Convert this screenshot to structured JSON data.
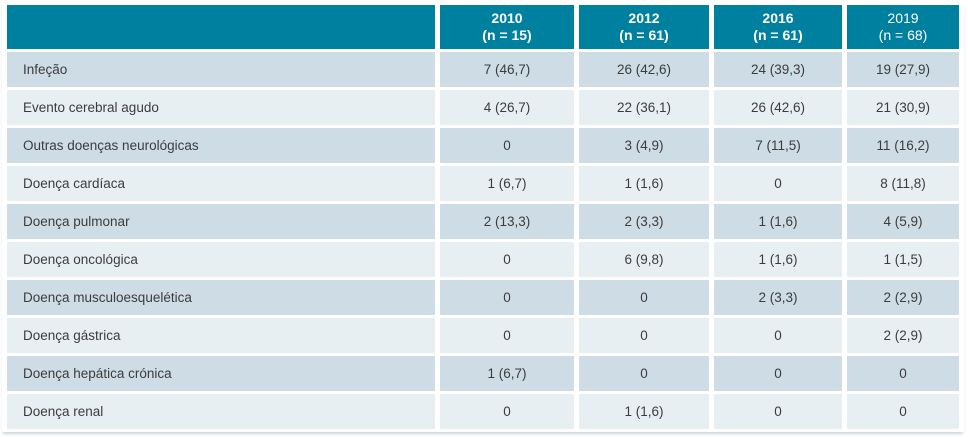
{
  "theme": {
    "header-bg": "#00809F",
    "header-text": "#FFFFFF",
    "row-dark": "#CEDCE6",
    "row-light": "#E8EFF3",
    "body-text": "#3C3C3C"
  },
  "table": {
    "columns": [
      {
        "year": "2010",
        "n": "(n = 15)"
      },
      {
        "year": "2012",
        "n": "(n = 61)"
      },
      {
        "year": "2016",
        "n": "(n = 61)"
      },
      {
        "year": "2019",
        "n": "(n = 68)"
      }
    ],
    "rows": [
      {
        "label": "Infeção",
        "values": [
          "7 (46,7)",
          "26 (42,6)",
          "24 (39,3)",
          "19 (27,9)"
        ]
      },
      {
        "label": "Evento cerebral agudo",
        "values": [
          "4 (26,7)",
          "22 (36,1)",
          "26 (42,6)",
          "21 (30,9)"
        ]
      },
      {
        "label": "Outras doenças neurológicas",
        "values": [
          "0",
          "3 (4,9)",
          "7 (11,5)",
          "11 (16,2)"
        ]
      },
      {
        "label": "Doença cardíaca",
        "values": [
          "1 (6,7)",
          "1 (1,6)",
          "0",
          "8 (11,8)"
        ]
      },
      {
        "label": "Doença pulmonar",
        "values": [
          "2 (13,3)",
          "2 (3,3)",
          "1 (1,6)",
          "4 (5,9)"
        ]
      },
      {
        "label": "Doença oncológica",
        "values": [
          "0",
          "6 (9,8)",
          "1 (1,6)",
          "1 (1,5)"
        ]
      },
      {
        "label": "Doença musculoesquelética",
        "values": [
          "0",
          "0",
          "2 (3,3)",
          "2 (2,9)"
        ]
      },
      {
        "label": "Doença gástrica",
        "values": [
          "0",
          "0",
          "0",
          "2 (2,9)"
        ]
      },
      {
        "label": "Doença hepática crónica",
        "values": [
          "1 (6,7)",
          "0",
          "0",
          "0"
        ]
      },
      {
        "label": "Doença renal",
        "values": [
          "0",
          "1 (1,6)",
          "0",
          "0"
        ]
      }
    ]
  },
  "chart_data": {
    "type": "table",
    "columns": [
      "",
      "2010 (n = 15)",
      "2012 (n = 61)",
      "2016 (n = 61)",
      "2019 (n = 68)"
    ],
    "row_labels": [
      "Infeção",
      "Evento cerebral agudo",
      "Outras doenças neurológicas",
      "Doença cardíaca",
      "Doença pulmonar",
      "Doença oncológica",
      "Doença musculoesquelética",
      "Doença gástrica",
      "Doença hepática crónica",
      "Doença renal"
    ],
    "cells": [
      [
        "7 (46,7)",
        "26 (42,6)",
        "24 (39,3)",
        "19 (27,9)"
      ],
      [
        "4 (26,7)",
        "22 (36,1)",
        "26 (42,6)",
        "21 (30,9)"
      ],
      [
        "0",
        "3 (4,9)",
        "7 (11,5)",
        "11 (16,2)"
      ],
      [
        "1 (6,7)",
        "1 (1,6)",
        "0",
        "8 (11,8)"
      ],
      [
        "2 (13,3)",
        "2 (3,3)",
        "1 (1,6)",
        "4 (5,9)"
      ],
      [
        "0",
        "6 (9,8)",
        "1 (1,6)",
        "1 (1,5)"
      ],
      [
        "0",
        "0",
        "2 (3,3)",
        "2 (2,9)"
      ],
      [
        "0",
        "0",
        "0",
        "2 (2,9)"
      ],
      [
        "1 (6,7)",
        "0",
        "0",
        "0"
      ],
      [
        "0",
        "1 (1,6)",
        "0",
        "0"
      ]
    ]
  }
}
